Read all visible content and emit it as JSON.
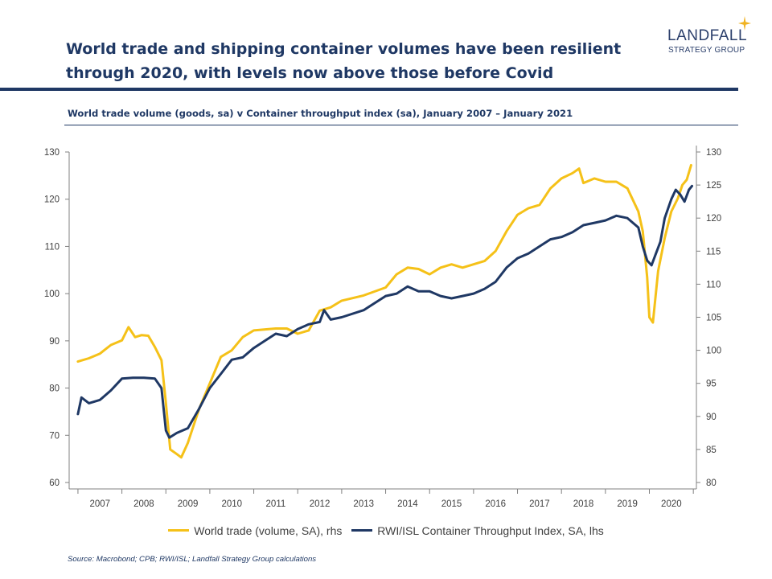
{
  "header": {
    "title_line1": "World trade and shipping container volumes have been resilient",
    "title_line2": "through 2020, with levels now above those before Covid",
    "subtitle": "World trade volume (goods, sa) v Container throughput index (sa), January 2007 – January 2021"
  },
  "logo": {
    "name": "LANDFALL",
    "tagline": "STRATEGY GROUP",
    "accent_color": "#f0b323"
  },
  "source": "Source: Macrobond;  CPB; RWI/ISL; Landfall Strategy Group calculations",
  "chart_data": {
    "type": "line",
    "title": "World trade volume (goods, sa) v Container throughput index (sa), January 2007 – January 2021",
    "period": "January 2007 – January 2021",
    "x_categories": [
      "2007",
      "2008",
      "2009",
      "2010",
      "2011",
      "2012",
      "2013",
      "2014",
      "2015",
      "2016",
      "2017",
      "2018",
      "2019",
      "2020"
    ],
    "left_axis": {
      "min": 60,
      "max": 130,
      "ticks": [
        60,
        70,
        80,
        90,
        100,
        110,
        120,
        130
      ]
    },
    "right_axis": {
      "min": 80,
      "max": 130,
      "ticks": [
        80,
        85,
        90,
        95,
        100,
        105,
        110,
        115,
        120,
        125,
        130
      ]
    },
    "series": [
      {
        "name": "World trade (volume, SA), rhs",
        "axis": "right",
        "color": "#f5c118",
        "points": [
          [
            2007.0,
            98.3
          ],
          [
            2007.25,
            98.8
          ],
          [
            2007.5,
            99.5
          ],
          [
            2007.75,
            100.8
          ],
          [
            2008.0,
            101.5
          ],
          [
            2008.15,
            103.5
          ],
          [
            2008.3,
            102.0
          ],
          [
            2008.45,
            102.3
          ],
          [
            2008.6,
            102.2
          ],
          [
            2008.75,
            100.5
          ],
          [
            2008.9,
            98.5
          ],
          [
            2009.0,
            92.0
          ],
          [
            2009.1,
            85.0
          ],
          [
            2009.25,
            84.3
          ],
          [
            2009.35,
            83.8
          ],
          [
            2009.5,
            86.0
          ],
          [
            2009.75,
            91.0
          ],
          [
            2010.0,
            95.0
          ],
          [
            2010.25,
            99.0
          ],
          [
            2010.5,
            100.0
          ],
          [
            2010.75,
            102.0
          ],
          [
            2011.0,
            103.0
          ],
          [
            2011.5,
            103.3
          ],
          [
            2011.75,
            103.3
          ],
          [
            2012.0,
            102.5
          ],
          [
            2012.25,
            103.0
          ],
          [
            2012.5,
            106.0
          ],
          [
            2012.75,
            106.5
          ],
          [
            2013.0,
            107.5
          ],
          [
            2013.5,
            108.3
          ],
          [
            2014.0,
            109.5
          ],
          [
            2014.25,
            111.5
          ],
          [
            2014.5,
            112.5
          ],
          [
            2014.75,
            112.3
          ],
          [
            2015.0,
            111.5
          ],
          [
            2015.25,
            112.5
          ],
          [
            2015.5,
            113.0
          ],
          [
            2015.75,
            112.5
          ],
          [
            2016.0,
            113.0
          ],
          [
            2016.25,
            113.5
          ],
          [
            2016.5,
            115.0
          ],
          [
            2016.75,
            118.0
          ],
          [
            2017.0,
            120.5
          ],
          [
            2017.25,
            121.5
          ],
          [
            2017.5,
            122.0
          ],
          [
            2017.75,
            124.5
          ],
          [
            2018.0,
            126.0
          ],
          [
            2018.25,
            126.8
          ],
          [
            2018.4,
            127.5
          ],
          [
            2018.5,
            125.3
          ],
          [
            2018.75,
            126.0
          ],
          [
            2019.0,
            125.5
          ],
          [
            2019.25,
            125.5
          ],
          [
            2019.5,
            124.5
          ],
          [
            2019.75,
            121.0
          ],
          [
            2019.85,
            118.0
          ],
          [
            2019.95,
            111.0
          ],
          [
            2020.0,
            105.0
          ],
          [
            2020.08,
            104.2
          ],
          [
            2020.2,
            112.0
          ],
          [
            2020.35,
            117.0
          ],
          [
            2020.5,
            121.0
          ],
          [
            2020.65,
            123.0
          ],
          [
            2020.75,
            125.0
          ],
          [
            2020.85,
            125.8
          ],
          [
            2020.95,
            128.0
          ]
        ]
      },
      {
        "name": "RWI/ISL Container Throughput Index, SA, lhs",
        "axis": "left",
        "color": "#1f3864",
        "points": [
          [
            2007.0,
            74.5
          ],
          [
            2007.08,
            78.0
          ],
          [
            2007.25,
            76.8
          ],
          [
            2007.5,
            77.5
          ],
          [
            2007.75,
            79.5
          ],
          [
            2008.0,
            82.0
          ],
          [
            2008.25,
            82.2
          ],
          [
            2008.5,
            82.2
          ],
          [
            2008.75,
            82.0
          ],
          [
            2008.9,
            80.0
          ],
          [
            2009.0,
            71.0
          ],
          [
            2009.08,
            69.5
          ],
          [
            2009.25,
            70.5
          ],
          [
            2009.5,
            71.5
          ],
          [
            2009.75,
            75.5
          ],
          [
            2010.0,
            80.0
          ],
          [
            2010.25,
            83.0
          ],
          [
            2010.5,
            86.0
          ],
          [
            2010.75,
            86.5
          ],
          [
            2011.0,
            88.5
          ],
          [
            2011.25,
            90.0
          ],
          [
            2011.5,
            91.5
          ],
          [
            2011.75,
            91.0
          ],
          [
            2012.0,
            92.5
          ],
          [
            2012.25,
            93.5
          ],
          [
            2012.5,
            94.0
          ],
          [
            2012.6,
            96.5
          ],
          [
            2012.75,
            94.5
          ],
          [
            2013.0,
            95.0
          ],
          [
            2013.5,
            96.5
          ],
          [
            2014.0,
            99.5
          ],
          [
            2014.25,
            100.0
          ],
          [
            2014.5,
            101.5
          ],
          [
            2014.75,
            100.5
          ],
          [
            2015.0,
            100.5
          ],
          [
            2015.25,
            99.5
          ],
          [
            2015.5,
            99.0
          ],
          [
            2015.75,
            99.5
          ],
          [
            2016.0,
            100.0
          ],
          [
            2016.25,
            101.0
          ],
          [
            2016.5,
            102.5
          ],
          [
            2016.75,
            105.5
          ],
          [
            2017.0,
            107.5
          ],
          [
            2017.25,
            108.5
          ],
          [
            2017.5,
            110.0
          ],
          [
            2017.75,
            111.5
          ],
          [
            2018.0,
            112.0
          ],
          [
            2018.25,
            113.0
          ],
          [
            2018.5,
            114.5
          ],
          [
            2018.75,
            115.0
          ],
          [
            2019.0,
            115.5
          ],
          [
            2019.25,
            116.5
          ],
          [
            2019.5,
            116.0
          ],
          [
            2019.75,
            114.0
          ],
          [
            2019.85,
            110.0
          ],
          [
            2019.95,
            107.0
          ],
          [
            2020.05,
            106.0
          ],
          [
            2020.15,
            108.5
          ],
          [
            2020.25,
            111.0
          ],
          [
            2020.35,
            116.0
          ],
          [
            2020.5,
            120.0
          ],
          [
            2020.6,
            122.0
          ],
          [
            2020.7,
            121.0
          ],
          [
            2020.8,
            119.5
          ],
          [
            2020.9,
            122.0
          ],
          [
            2020.97,
            122.8
          ]
        ]
      }
    ],
    "legend_position": "bottom-center",
    "grid": false
  }
}
